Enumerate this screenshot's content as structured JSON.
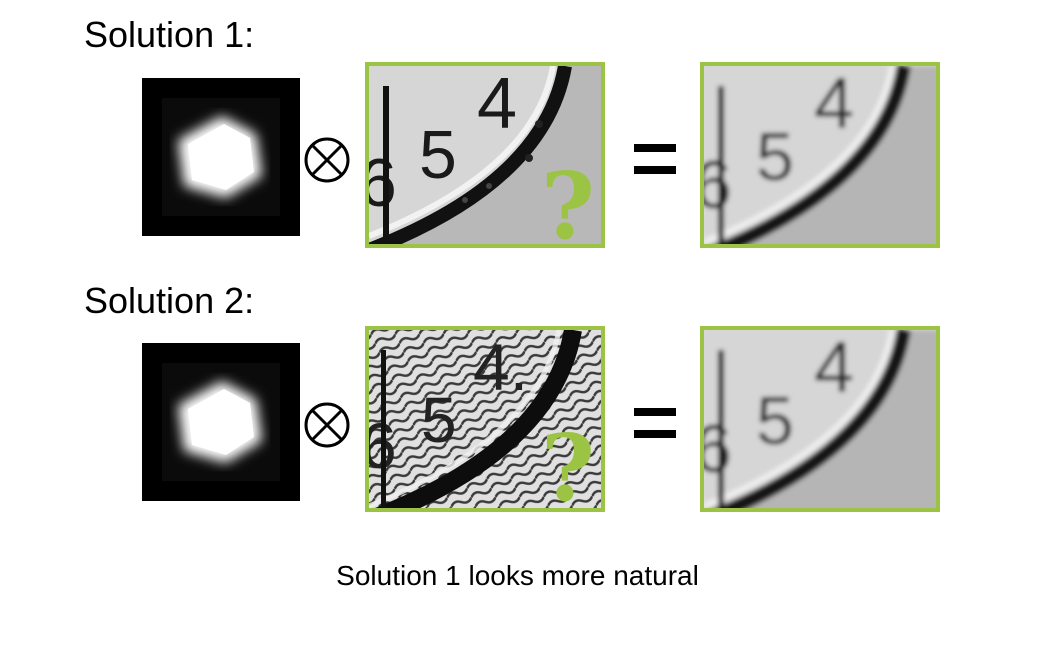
{
  "solutions": [
    {
      "label": "Solution 1:",
      "question_mark": "?"
    },
    {
      "label": "Solution 2:",
      "question_mark": "?"
    }
  ],
  "operator_icon": "circled-times-icon",
  "equals_icon": "equals-icon",
  "caption": "Solution 1 looks more natural",
  "colors": {
    "frame_green": "#9cc444",
    "question_green": "#9cc444"
  }
}
